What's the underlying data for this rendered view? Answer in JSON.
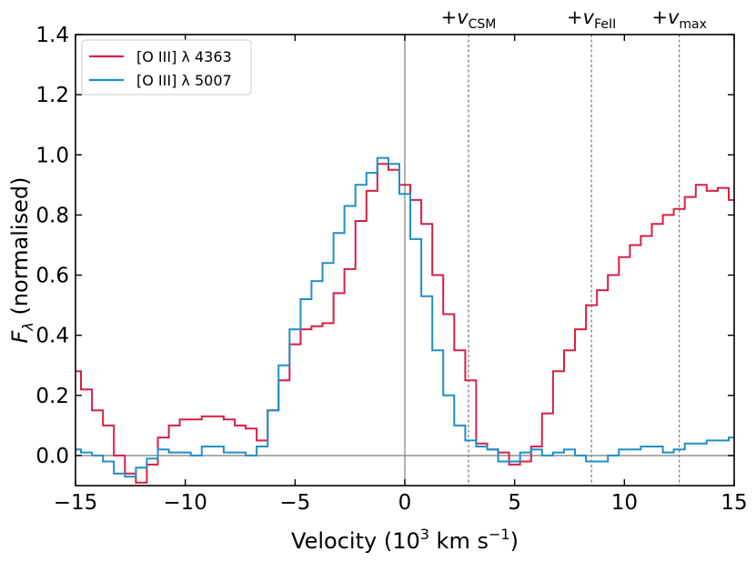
{
  "chart_data": {
    "type": "line",
    "line_style": "step",
    "xlabel": {
      "base": "Velocity (10",
      "sup": "3",
      "unit": " km s",
      "unit_sup": "−1",
      "close": ")"
    },
    "ylabel": {
      "main": "F",
      "sub": "λ",
      "rest": " (normalised)"
    },
    "xlim": [
      -15,
      15
    ],
    "ylim": [
      -0.1,
      1.4
    ],
    "x_ticks": [
      -15,
      -10,
      -5,
      0,
      5,
      10,
      15
    ],
    "x_tick_labels": [
      "−15",
      "−10",
      "−5",
      "0",
      "5",
      "10",
      "15"
    ],
    "y_ticks": [
      0.0,
      0.2,
      0.4,
      0.6,
      0.8,
      1.0,
      1.2,
      1.4
    ],
    "y_tick_labels": [
      "0.0",
      "0.2",
      "0.4",
      "0.6",
      "0.8",
      "1.0",
      "1.2",
      "1.4"
    ],
    "grid": false,
    "legend_position": "top-left",
    "zero_lines": {
      "vertical_x": 0,
      "horizontal_y": 0,
      "color": "#888888"
    },
    "markers": [
      {
        "x": 2.9,
        "label": "+v",
        "sub": "CSM"
      },
      {
        "x": 8.5,
        "label": "+v",
        "sub": "FeII"
      },
      {
        "x": 12.5,
        "label": "+v",
        "sub": "max"
      }
    ],
    "series": [
      {
        "name": "[O III] λ 4363",
        "color": "#d62046",
        "x": [
          -15.0,
          -14.5,
          -14.0,
          -13.5,
          -13.0,
          -12.5,
          -12.0,
          -11.5,
          -11.0,
          -10.5,
          -10.0,
          -9.5,
          -9.0,
          -8.5,
          -8.0,
          -7.5,
          -7.0,
          -6.5,
          -6.0,
          -5.5,
          -5.0,
          -4.5,
          -4.0,
          -3.5,
          -3.0,
          -2.5,
          -2.0,
          -1.5,
          -1.0,
          -0.5,
          0.0,
          0.5,
          1.0,
          1.5,
          2.0,
          2.5,
          3.0,
          3.5,
          4.0,
          4.5,
          5.0,
          5.5,
          6.0,
          6.5,
          7.0,
          7.5,
          8.0,
          8.5,
          9.0,
          9.5,
          10.0,
          10.5,
          11.0,
          11.5,
          12.0,
          12.5,
          13.0,
          13.5,
          14.0,
          14.5,
          15.0
        ],
        "values": [
          0.28,
          0.22,
          0.15,
          0.1,
          0.0,
          -0.06,
          -0.09,
          -0.03,
          0.06,
          0.1,
          0.12,
          0.12,
          0.13,
          0.13,
          0.12,
          0.1,
          0.09,
          0.05,
          0.15,
          0.25,
          0.37,
          0.42,
          0.43,
          0.44,
          0.54,
          0.62,
          0.78,
          0.88,
          0.97,
          0.95,
          0.9,
          0.85,
          0.77,
          0.6,
          0.47,
          0.35,
          0.25,
          0.04,
          0.02,
          0.01,
          -0.03,
          -0.02,
          0.03,
          0.14,
          0.28,
          0.35,
          0.42,
          0.5,
          0.55,
          0.6,
          0.66,
          0.7,
          0.73,
          0.77,
          0.8,
          0.82,
          0.86,
          0.9,
          0.88,
          0.89,
          0.85
        ]
      },
      {
        "name": "[O III] λ 5007",
        "color": "#1f8fc8",
        "x": [
          -15.0,
          -14.5,
          -14.0,
          -13.5,
          -13.0,
          -12.5,
          -12.0,
          -11.5,
          -11.0,
          -10.5,
          -10.0,
          -9.5,
          -9.0,
          -8.5,
          -8.0,
          -7.5,
          -7.0,
          -6.5,
          -6.0,
          -5.5,
          -5.0,
          -4.5,
          -4.0,
          -3.5,
          -3.0,
          -2.5,
          -2.0,
          -1.5,
          -1.0,
          -0.5,
          0.0,
          0.5,
          1.0,
          1.5,
          2.0,
          2.5,
          3.0,
          3.5,
          4.0,
          4.5,
          5.0,
          5.5,
          6.0,
          6.5,
          7.0,
          7.5,
          8.0,
          8.5,
          9.0,
          9.5,
          10.0,
          10.5,
          11.0,
          11.5,
          12.0,
          12.5,
          13.0,
          13.5,
          14.0,
          14.5,
          15.0
        ],
        "values": [
          0.02,
          0.01,
          0.0,
          -0.02,
          -0.06,
          -0.07,
          -0.04,
          -0.01,
          0.02,
          0.01,
          0.01,
          0.0,
          0.03,
          0.03,
          0.01,
          0.01,
          0.0,
          0.03,
          0.15,
          0.3,
          0.42,
          0.52,
          0.58,
          0.64,
          0.74,
          0.83,
          0.9,
          0.94,
          0.99,
          0.97,
          0.87,
          0.72,
          0.53,
          0.35,
          0.2,
          0.1,
          0.05,
          0.03,
          0.02,
          -0.02,
          -0.02,
          0.01,
          0.02,
          0.0,
          0.01,
          0.02,
          0.0,
          -0.02,
          -0.02,
          0.0,
          0.02,
          0.02,
          0.03,
          0.03,
          0.01,
          0.02,
          0.04,
          0.04,
          0.05,
          0.05,
          0.06
        ]
      }
    ]
  }
}
